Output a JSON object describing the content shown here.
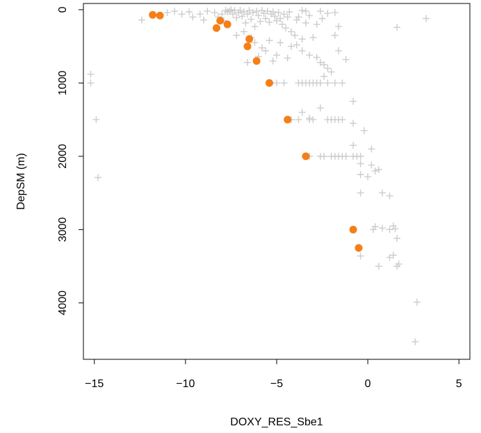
{
  "chart_data": {
    "type": "scatter",
    "title": "",
    "xlabel": "DOXY_RES_Sbe1",
    "ylabel": "DepSM (m)",
    "xlim": [
      -15.6,
      5.6
    ],
    "ylim": [
      -85,
      4770
    ],
    "y_inverted": true,
    "grid": false,
    "xticks": [
      -15,
      -10,
      -5,
      0,
      5
    ],
    "yticks": [
      0,
      1000,
      2000,
      3000,
      4000
    ],
    "xtick_labels": [
      "−15",
      "−10",
      "−5",
      "0",
      "5"
    ],
    "ytick_labels": [
      "0",
      "1000",
      "2000",
      "3000",
      "4000"
    ],
    "series": [
      {
        "marker": "plus",
        "color": "#cccccc",
        "points": [
          [
            -12.4,
            140
          ],
          [
            -11.4,
            80
          ],
          [
            -11,
            40
          ],
          [
            -10.6,
            20
          ],
          [
            -10.2,
            60
          ],
          [
            -9.8,
            30
          ],
          [
            -9.6,
            100
          ],
          [
            -9.2,
            60
          ],
          [
            -9.0,
            140
          ],
          [
            -8.8,
            20
          ],
          [
            -8.4,
            40
          ],
          [
            -8.2,
            100
          ],
          [
            -8.0,
            60
          ],
          [
            -7.9,
            150
          ],
          [
            -7.8,
            10
          ],
          [
            -7.7,
            30
          ],
          [
            -7.6,
            20
          ],
          [
            -7.5,
            0
          ],
          [
            -7.4,
            60
          ],
          [
            -7.3,
            10
          ],
          [
            -7.2,
            110
          ],
          [
            -7.1,
            40
          ],
          [
            -7.0,
            10
          ],
          [
            -6.9,
            90
          ],
          [
            -6.8,
            30
          ],
          [
            -6.7,
            180
          ],
          [
            -6.6,
            60
          ],
          [
            -6.5,
            10
          ],
          [
            -6.4,
            130
          ],
          [
            -6.3,
            40
          ],
          [
            -6.2,
            230
          ],
          [
            -6.1,
            20
          ],
          [
            -6.0,
            80
          ],
          [
            -5.9,
            160
          ],
          [
            -5.8,
            10
          ],
          [
            -5.7,
            50
          ],
          [
            -5.6,
            120
          ],
          [
            -5.5,
            20
          ],
          [
            -5.4,
            170
          ],
          [
            -5.3,
            60
          ],
          [
            -5.2,
            30
          ],
          [
            -5.1,
            90
          ],
          [
            -5.0,
            150
          ],
          [
            -4.9,
            40
          ],
          [
            -4.8,
            120
          ],
          [
            -4.7,
            200
          ],
          [
            -4.6,
            60
          ],
          [
            -4.5,
            250
          ],
          [
            -4.4,
            100
          ],
          [
            -4.3,
            30
          ],
          [
            -4.2,
            300
          ],
          [
            -4.0,
            350
          ],
          [
            -3.9,
            140
          ],
          [
            -3.8,
            100
          ],
          [
            -3.6,
            400
          ],
          [
            -3.4,
            180
          ],
          [
            -3.2,
            80
          ],
          [
            -3.0,
            380
          ],
          [
            -3.4,
            20
          ],
          [
            -3.6,
            10
          ],
          [
            -2.8,
            200
          ],
          [
            -2.6,
            20
          ],
          [
            -2.5,
            120
          ],
          [
            -2.2,
            50
          ],
          [
            -1.8,
            350
          ],
          [
            -1.6,
            230
          ],
          [
            -1.8,
            40
          ],
          [
            1.6,
            240
          ],
          [
            3.2,
            120
          ],
          [
            -7.2,
            350
          ],
          [
            -6.8,
            300
          ],
          [
            -6.4,
            380
          ],
          [
            -6.2,
            450
          ],
          [
            -5.8,
            520
          ],
          [
            -5.6,
            560
          ],
          [
            -5.4,
            420
          ],
          [
            -5.0,
            620
          ],
          [
            -4.8,
            450
          ],
          [
            -4.4,
            660
          ],
          [
            -4.2,
            500
          ],
          [
            -3.9,
            480
          ],
          [
            -3.6,
            560
          ],
          [
            -3.2,
            620
          ],
          [
            -2.8,
            650
          ],
          [
            -2.6,
            720
          ],
          [
            -2.4,
            750
          ],
          [
            -2.2,
            800
          ],
          [
            -2.0,
            850
          ],
          [
            -1.6,
            560
          ],
          [
            -1.2,
            680
          ],
          [
            -6.0,
            640
          ],
          [
            -6.6,
            720
          ],
          [
            -5.2,
            700
          ],
          [
            -5.4,
            1000
          ],
          [
            -5.0,
            1000
          ],
          [
            -4.6,
            1000
          ],
          [
            -3.8,
            1000
          ],
          [
            -3.6,
            1000
          ],
          [
            -3.4,
            1000
          ],
          [
            -3.2,
            1000
          ],
          [
            -3.0,
            1000
          ],
          [
            -2.8,
            1000
          ],
          [
            -2.6,
            1000
          ],
          [
            -2.2,
            1000
          ],
          [
            -1.8,
            1000
          ],
          [
            -2.4,
            910
          ],
          [
            -1.4,
            1000
          ],
          [
            -0.8,
            1250
          ],
          [
            -2.6,
            1340
          ],
          [
            -3.6,
            1400
          ],
          [
            -3.2,
            1480
          ],
          [
            -4.2,
            1500
          ],
          [
            -3.8,
            1500
          ],
          [
            -3.2,
            1500
          ],
          [
            -3.0,
            1500
          ],
          [
            -2.2,
            1500
          ],
          [
            -2.0,
            1500
          ],
          [
            -1.8,
            1500
          ],
          [
            -1.6,
            1500
          ],
          [
            -1.4,
            1500
          ],
          [
            -0.2,
            1650
          ],
          [
            -0.8,
            1550
          ],
          [
            -0.8,
            1850
          ],
          [
            0.2,
            1900
          ],
          [
            -3.2,
            2000
          ],
          [
            -2.6,
            2000
          ],
          [
            -2.4,
            2000
          ],
          [
            -2.0,
            2000
          ],
          [
            -1.8,
            2000
          ],
          [
            -1.6,
            2000
          ],
          [
            -1.4,
            2000
          ],
          [
            -1.2,
            2000
          ],
          [
            -0.8,
            2000
          ],
          [
            -0.6,
            2000
          ],
          [
            -0.4,
            2000
          ],
          [
            -0.4,
            2100
          ],
          [
            0.2,
            2120
          ],
          [
            0.4,
            2200
          ],
          [
            0.6,
            2180
          ],
          [
            -0.4,
            2250
          ],
          [
            0.0,
            2280
          ],
          [
            -0.4,
            2500
          ],
          [
            0.8,
            2500
          ],
          [
            1.2,
            2540
          ],
          [
            0.3,
            3000
          ],
          [
            0.4,
            2960
          ],
          [
            0.8,
            2980
          ],
          [
            1.4,
            2950
          ],
          [
            1.5,
            2990
          ],
          [
            1.2,
            3000
          ],
          [
            1.6,
            3120
          ],
          [
            1.2,
            3380
          ],
          [
            1.4,
            3350
          ],
          [
            1.6,
            3500
          ],
          [
            1.7,
            3470
          ],
          [
            0.6,
            3500
          ],
          [
            -0.4,
            3360
          ],
          [
            2.7,
            3990
          ],
          [
            2.6,
            4530
          ],
          [
            -15.2,
            880
          ],
          [
            -15.2,
            1000
          ],
          [
            -14.9,
            1500
          ],
          [
            -14.8,
            2290
          ]
        ]
      },
      {
        "marker": "circle",
        "color": "#f57f17",
        "points": [
          [
            -11.8,
            70
          ],
          [
            -11.4,
            80
          ],
          [
            -8.1,
            150
          ],
          [
            -8.3,
            250
          ],
          [
            -7.7,
            200
          ],
          [
            -6.5,
            400
          ],
          [
            -6.6,
            500
          ],
          [
            -6.1,
            700
          ],
          [
            -5.4,
            1000
          ],
          [
            -4.4,
            1500
          ],
          [
            -3.4,
            2000
          ],
          [
            -0.8,
            3000
          ],
          [
            -0.5,
            3250
          ]
        ]
      }
    ]
  }
}
